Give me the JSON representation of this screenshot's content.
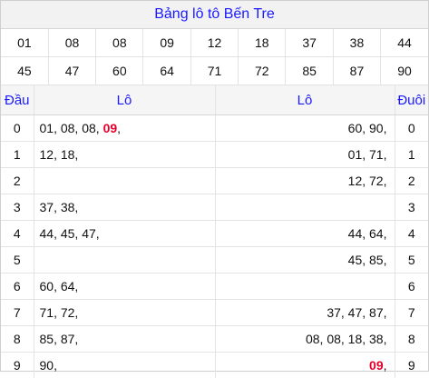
{
  "title": "Bảng lô tô Bến Tre",
  "numbers_row1": [
    "01",
    "08",
    "08",
    "09",
    "12",
    "18",
    "37",
    "38",
    "44"
  ],
  "numbers_row2": [
    "45",
    "47",
    "60",
    "64",
    "71",
    "72",
    "85",
    "87",
    "90"
  ],
  "highlight_number": "09",
  "headers": {
    "dau": "Đầu",
    "lo_left": "Lô",
    "lo_right": "Lô",
    "duoi": "Đuôi"
  },
  "rows": [
    {
      "dau": "0",
      "left_pre": "01, 08, 08, ",
      "left_hl": "09",
      "left_post": ",",
      "right_pre": "60, 90,",
      "right_hl": "",
      "right_post": "",
      "duoi": "0"
    },
    {
      "dau": "1",
      "left_pre": "12, 18,",
      "left_hl": "",
      "left_post": "",
      "right_pre": "01, 71,",
      "right_hl": "",
      "right_post": "",
      "duoi": "1"
    },
    {
      "dau": "2",
      "left_pre": "",
      "left_hl": "",
      "left_post": "",
      "right_pre": "12, 72,",
      "right_hl": "",
      "right_post": "",
      "duoi": "2"
    },
    {
      "dau": "3",
      "left_pre": "37, 38,",
      "left_hl": "",
      "left_post": "",
      "right_pre": "",
      "right_hl": "",
      "right_post": "",
      "duoi": "3"
    },
    {
      "dau": "4",
      "left_pre": "44, 45, 47,",
      "left_hl": "",
      "left_post": "",
      "right_pre": "44, 64,",
      "right_hl": "",
      "right_post": "",
      "duoi": "4"
    },
    {
      "dau": "5",
      "left_pre": "",
      "left_hl": "",
      "left_post": "",
      "right_pre": "45, 85,",
      "right_hl": "",
      "right_post": "",
      "duoi": "5"
    },
    {
      "dau": "6",
      "left_pre": "60, 64,",
      "left_hl": "",
      "left_post": "",
      "right_pre": "",
      "right_hl": "",
      "right_post": "",
      "duoi": "6"
    },
    {
      "dau": "7",
      "left_pre": "71, 72,",
      "left_hl": "",
      "left_post": "",
      "right_pre": "37, 47, 87,",
      "right_hl": "",
      "right_post": "",
      "duoi": "7"
    },
    {
      "dau": "8",
      "left_pre": "85, 87,",
      "left_hl": "",
      "left_post": "",
      "right_pre": "08, 08, 18, 38,",
      "right_hl": "",
      "right_post": "",
      "duoi": "8"
    },
    {
      "dau": "9",
      "left_pre": "90,",
      "left_hl": "",
      "left_post": "",
      "right_pre": "",
      "right_hl": "09",
      "right_post": ",",
      "duoi": "9"
    }
  ]
}
